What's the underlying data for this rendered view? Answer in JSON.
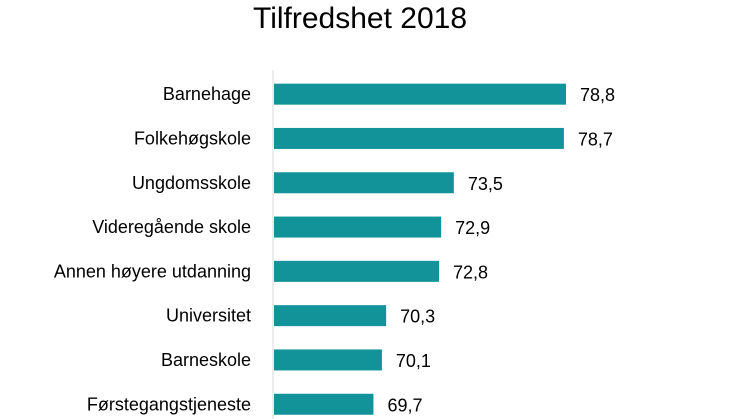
{
  "chart_data": {
    "type": "bar",
    "orientation": "horizontal",
    "title": "Tilfredshet 2018",
    "xlabel": "",
    "ylabel": "",
    "categories": [
      "Barnehage",
      "Folkehøgskole",
      "Ungdomsskole",
      "Videregående skole",
      "Annen høyere utdanning",
      "Universitet",
      "Barneskole",
      "Førstegangstjeneste"
    ],
    "values": [
      78.8,
      78.7,
      73.5,
      72.9,
      72.8,
      70.3,
      70.1,
      69.7
    ],
    "value_labels": [
      "78,8",
      "78,7",
      "73,5",
      "72,9",
      "72,8",
      "70,3",
      "70,1",
      "69,7"
    ],
    "xlim": [
      65,
      80
    ],
    "grid": false,
    "legend": "none",
    "bar_color": "#12939a",
    "axis_color": "#d9d9d9"
  }
}
